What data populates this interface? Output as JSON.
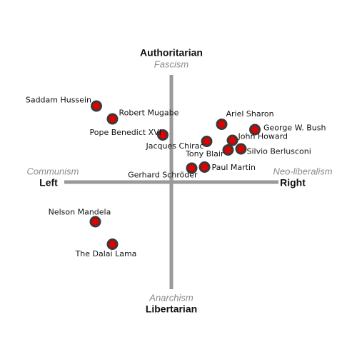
{
  "chart_data": {
    "type": "scatter",
    "axis_labels": {
      "top": "Authoritarian",
      "top_sub": "Fascism",
      "bottom": "Libertarian",
      "bottom_sub": "Anarchism",
      "left": "Left",
      "left_sub": "Communism",
      "right": "Right",
      "right_sub": "Neo-liberalism"
    },
    "labels": [
      "Saddam Hussein",
      "Robert Mugabe",
      "Pope Benedict XVI",
      "Jacques Chirac",
      "Ariel Sharon",
      "George W. Bush",
      "John Howard",
      "Tony Blair",
      "Silvio Berlusconi",
      "Gerhard Schröder",
      "Paul Martin",
      "Nelson Mandela",
      "The Dalai Lama"
    ],
    "x": [
      -7,
      -5.5,
      -0.8,
      3.3,
      4.7,
      7.8,
      5.7,
      5.3,
      6.5,
      1.9,
      3.1,
      -7.1,
      -5.5
    ],
    "values": [
      7.1,
      5.9,
      4.4,
      3.8,
      5.4,
      4.9,
      3.9,
      3.0,
      3.1,
      1.3,
      1.4,
      -3.7,
      -5.8
    ],
    "color": "#e00000",
    "xlim": [
      -10,
      10
    ],
    "ylim": [
      -10,
      10
    ]
  }
}
